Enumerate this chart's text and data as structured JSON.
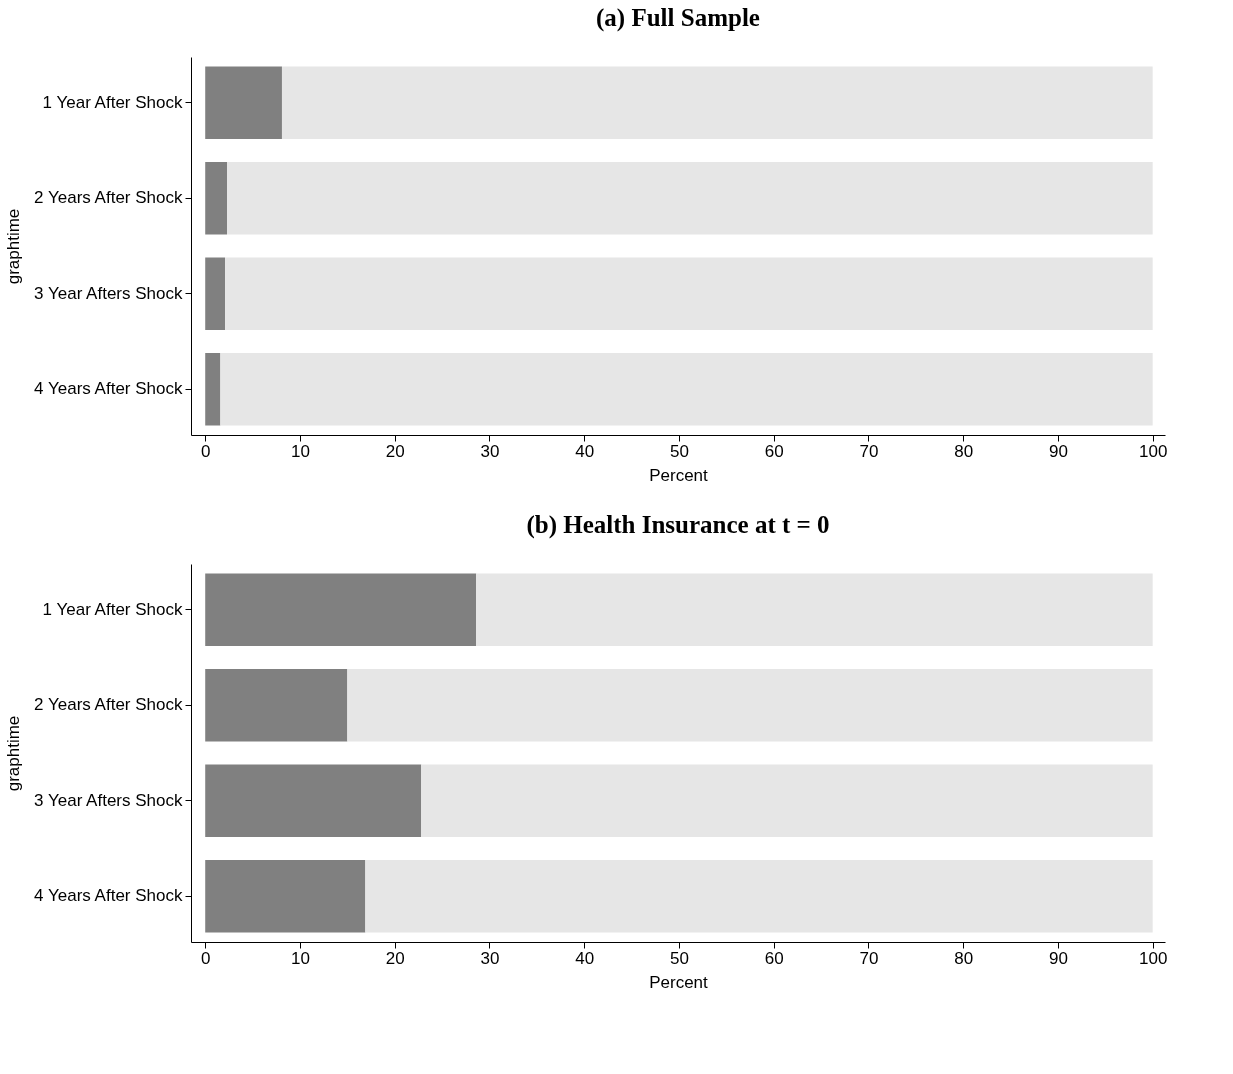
{
  "chart_data": [
    {
      "type": "bar",
      "title": "(a) Full Sample",
      "xlabel": "Percent",
      "ylabel": "graphtime",
      "orientation": "horizontal",
      "stacked": true,
      "categories": [
        "1 Year After Shock",
        "2 Years After Shock",
        "3 Year Afters Shock",
        "4 Years After Shock"
      ],
      "series": [
        {
          "color": "#808080",
          "values": [
            8.1,
            2.3,
            2.1,
            1.6
          ]
        },
        {
          "color": "#e6e6e6",
          "values": [
            91.9,
            97.7,
            97.9,
            98.4
          ]
        }
      ],
      "xlim": [
        -1.5,
        101.3
      ],
      "xticks": [
        0,
        10,
        20,
        30,
        40,
        50,
        60,
        70,
        80,
        90,
        100
      ]
    },
    {
      "type": "bar",
      "title": "(b) Health Insurance at t = 0",
      "xlabel": "Percent",
      "ylabel": "graphtime",
      "orientation": "horizontal",
      "stacked": true,
      "categories": [
        "1 Year After Shock",
        "2 Years After Shock",
        "3 Year Afters Shock",
        "4 Years After Shock"
      ],
      "series": [
        {
          "color": "#808080",
          "values": [
            28.6,
            15.0,
            22.8,
            16.9
          ]
        },
        {
          "color": "#e6e6e6",
          "values": [
            71.4,
            85.0,
            77.2,
            83.1
          ]
        }
      ],
      "xlim": [
        -1.5,
        101.3
      ],
      "xticks": [
        0,
        10,
        20,
        30,
        40,
        50,
        60,
        70,
        80,
        90,
        100
      ]
    }
  ]
}
